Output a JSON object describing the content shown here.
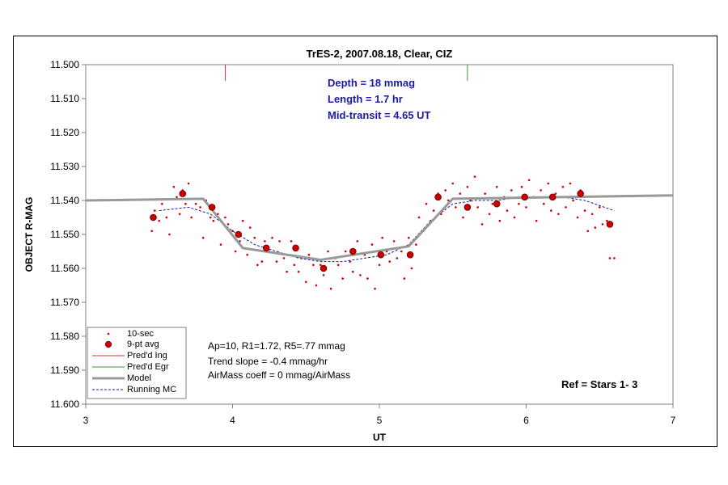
{
  "chart_data": {
    "type": "scatter",
    "title": "TrES-2, 2007.08.18, Clear, CIZ",
    "xlabel": "UT",
    "ylabel": "OBJECT R-MAG",
    "xlim": [
      3,
      7
    ],
    "ylim": [
      11.5,
      11.6
    ],
    "y_inverted": true,
    "x_ticks": [
      "3",
      "4",
      "5",
      "6",
      "7"
    ],
    "y_ticks": [
      "11.500",
      "11.510",
      "11.520",
      "11.530",
      "11.540",
      "11.550",
      "11.560",
      "11.570",
      "11.580",
      "11.590",
      "11.600"
    ],
    "grid": false,
    "legend_position": "bottom-left",
    "annotations": {
      "depth": "Depth = 18 mmag",
      "length": "Length = 1.7 hr",
      "mid_transit": "Mid-transit = 4.65 UT",
      "ap": "Ap=10, R1=1.72, R5=.77 mmag",
      "trend": "Trend slope = -0.4 mmag/hr",
      "airmass": "AirMass coeff = 0 mmag/AirMass",
      "ref": "Ref = Stars 1- 3"
    },
    "pred_ingress": 3.95,
    "pred_egress": 5.6,
    "series": [
      {
        "name": "10-sec",
        "kind": "points",
        "color": "#cc0000",
        "x": [
          3.45,
          3.47,
          3.5,
          3.52,
          3.55,
          3.57,
          3.6,
          3.62,
          3.64,
          3.66,
          3.68,
          3.7,
          3.72,
          3.75,
          3.78,
          3.8,
          3.82,
          3.85,
          3.87,
          3.9,
          3.92,
          3.95,
          3.97,
          4.0,
          4.02,
          4.05,
          4.07,
          4.1,
          4.12,
          4.15,
          4.17,
          4.2,
          4.22,
          4.25,
          4.27,
          4.3,
          4.32,
          4.35,
          4.37,
          4.4,
          4.42,
          4.45,
          4.47,
          4.5,
          4.52,
          4.55,
          4.57,
          4.6,
          4.62,
          4.65,
          4.67,
          4.7,
          4.72,
          4.75,
          4.77,
          4.8,
          4.82,
          4.85,
          4.87,
          4.9,
          4.92,
          4.95,
          4.97,
          5.0,
          5.02,
          5.05,
          5.07,
          5.1,
          5.12,
          5.15,
          5.17,
          5.2,
          5.22,
          5.25,
          5.27,
          5.3,
          5.32,
          5.35,
          5.37,
          5.4,
          5.42,
          5.45,
          5.47,
          5.5,
          5.52,
          5.55,
          5.57,
          5.6,
          5.62,
          5.65,
          5.67,
          5.7,
          5.72,
          5.75,
          5.77,
          5.8,
          5.82,
          5.85,
          5.87,
          5.9,
          5.92,
          5.95,
          5.97,
          6.0,
          6.02,
          6.05,
          6.07,
          6.1,
          6.12,
          6.15,
          6.17,
          6.2,
          6.22,
          6.25,
          6.27,
          6.3,
          6.32,
          6.35,
          6.37,
          6.4,
          6.42,
          6.45,
          6.47,
          6.5,
          6.52,
          6.55,
          6.57,
          6.6
        ],
        "y": [
          11.549,
          11.543,
          11.546,
          11.541,
          11.545,
          11.55,
          11.536,
          11.539,
          11.544,
          11.537,
          11.541,
          11.535,
          11.545,
          11.541,
          11.542,
          11.551,
          11.54,
          11.545,
          11.546,
          11.544,
          11.553,
          11.545,
          11.547,
          11.549,
          11.555,
          11.552,
          11.546,
          11.556,
          11.548,
          11.551,
          11.559,
          11.558,
          11.552,
          11.555,
          11.551,
          11.558,
          11.552,
          11.557,
          11.561,
          11.552,
          11.559,
          11.561,
          11.557,
          11.564,
          11.556,
          11.559,
          11.565,
          11.559,
          11.562,
          11.555,
          11.566,
          11.557,
          11.559,
          11.563,
          11.555,
          11.558,
          11.561,
          11.552,
          11.562,
          11.556,
          11.563,
          11.553,
          11.566,
          11.559,
          11.551,
          11.555,
          11.558,
          11.552,
          11.557,
          11.555,
          11.563,
          11.551,
          11.56,
          11.553,
          11.545,
          11.549,
          11.541,
          11.546,
          11.543,
          11.538,
          11.544,
          11.537,
          11.54,
          11.535,
          11.542,
          11.538,
          11.545,
          11.536,
          11.54,
          11.533,
          11.542,
          11.547,
          11.538,
          11.544,
          11.541,
          11.536,
          11.546,
          11.539,
          11.543,
          11.537,
          11.545,
          11.541,
          11.536,
          11.542,
          11.534,
          11.539,
          11.546,
          11.537,
          11.541,
          11.535,
          11.543,
          11.538,
          11.544,
          11.536,
          11.542,
          11.535,
          11.54,
          11.545,
          11.537,
          11.543,
          11.549,
          11.544,
          11.548,
          11.542,
          11.547,
          11.546,
          11.557,
          11.557
        ]
      },
      {
        "name": "9-pt avg",
        "kind": "dots",
        "color": "#cc0000",
        "x": [
          3.46,
          3.66,
          3.86,
          4.04,
          4.23,
          4.43,
          4.62,
          4.82,
          5.01,
          5.21,
          5.4,
          5.6,
          5.8,
          5.99,
          6.18,
          6.37,
          6.57
        ],
        "y": [
          11.545,
          11.538,
          11.542,
          11.55,
          11.554,
          11.554,
          11.56,
          11.555,
          11.556,
          11.556,
          11.539,
          11.542,
          11.541,
          11.539,
          11.539,
          11.538,
          11.547
        ]
      },
      {
        "name": "Model",
        "kind": "line",
        "color": "#999999",
        "x": [
          3.0,
          3.8,
          4.07,
          4.6,
          5.2,
          5.5,
          7.0
        ],
        "y": [
          11.54,
          11.5395,
          11.554,
          11.5575,
          11.5535,
          11.5395,
          11.5385
        ]
      },
      {
        "name": "Running MC",
        "kind": "dashed",
        "color": "#1a1aa6",
        "x": [
          3.5,
          3.7,
          3.85,
          4.0,
          4.15,
          4.3,
          4.45,
          4.6,
          4.75,
          4.9,
          5.05,
          5.2,
          5.35,
          5.5,
          5.65,
          5.8,
          5.95,
          6.1,
          6.25,
          6.4,
          6.6
        ],
        "y": [
          11.543,
          11.542,
          11.544,
          11.549,
          11.553,
          11.555,
          11.557,
          11.558,
          11.558,
          11.557,
          11.556,
          11.553,
          11.546,
          11.541,
          11.54,
          11.54,
          11.539,
          11.539,
          11.539,
          11.54,
          11.543
        ]
      }
    ],
    "legend": {
      "ten_sec": "10-sec",
      "nine_pt": "9-pt avg",
      "pred_ing": "Pred'd Ing",
      "pred_egr": "Pred'd Egr",
      "model": "Model",
      "running": "Running MC"
    },
    "colors": {
      "points": "#cc0000",
      "model": "#999999",
      "running": "#1a1aa6",
      "ingress": "#cc3333",
      "egress": "#339933",
      "annotation": "#1a1aa6"
    }
  }
}
